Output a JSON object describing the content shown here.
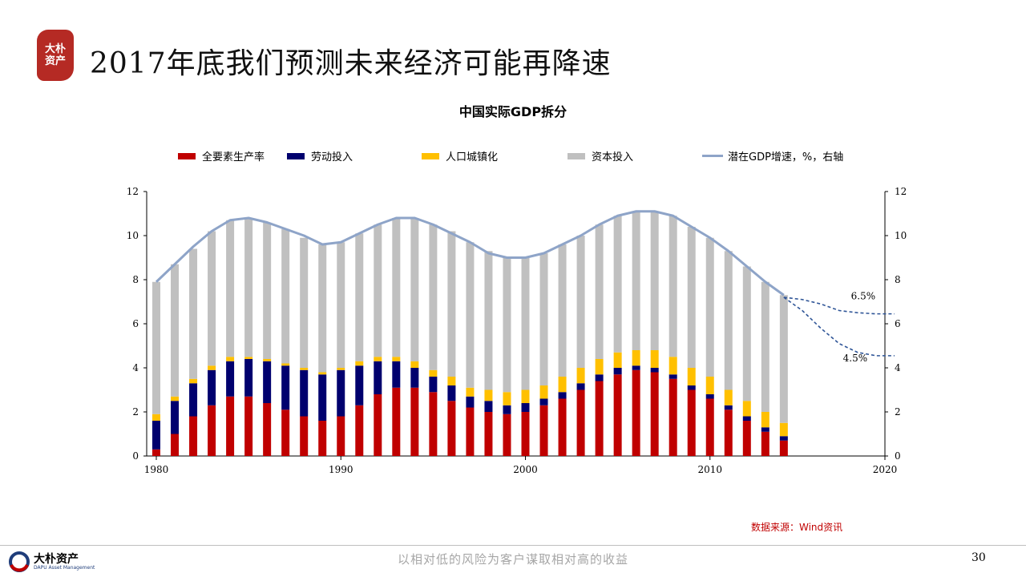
{
  "slide": {
    "title": "2017年底我们预测未来经济可能再降速",
    "logo_text": "大朴资产",
    "source": "数据来源：Wind资讯",
    "slogan": "以相对低的风险为客户谋取相对高的收益",
    "page_number": "30",
    "footer_company": "大朴资产",
    "footer_company_en": "DAPU Asset Management"
  },
  "colors": {
    "tfp": "#c00000",
    "labor": "#00006e",
    "urban": "#ffc000",
    "capital": "#c0c0c0",
    "potential": "#8ea4c8",
    "forecast": "#2f5597"
  },
  "chart_data": {
    "type": "bar",
    "title": "中国实际GDP拆分",
    "stacked": true,
    "xlim": [
      1980,
      2020
    ],
    "ylim": [
      0,
      12
    ],
    "y2lim": [
      0,
      12
    ],
    "x_ticks": [
      "1980",
      "1990",
      "2000",
      "2010",
      "2020"
    ],
    "y_ticks": [
      "0",
      "2",
      "4",
      "6",
      "8",
      "10",
      "12"
    ],
    "y2_ticks": [
      "0",
      "2",
      "4",
      "6",
      "8",
      "10",
      "12"
    ],
    "legend_position": "top",
    "grid": false,
    "years": [
      1980,
      1981,
      1982,
      1983,
      1984,
      1985,
      1986,
      1987,
      1988,
      1989,
      1990,
      1991,
      1992,
      1993,
      1994,
      1995,
      1996,
      1997,
      1998,
      1999,
      2000,
      2001,
      2002,
      2003,
      2004,
      2005,
      2006,
      2007,
      2008,
      2009,
      2010,
      2011,
      2012,
      2013,
      2014
    ],
    "series": [
      {
        "name": "全要素生产率",
        "values": [
          0.3,
          1.0,
          1.8,
          2.3,
          2.7,
          2.7,
          2.4,
          2.1,
          1.8,
          1.6,
          1.8,
          2.3,
          2.8,
          3.1,
          3.1,
          2.9,
          2.5,
          2.2,
          2.0,
          1.9,
          2.0,
          2.3,
          2.6,
          3.0,
          3.4,
          3.7,
          3.9,
          3.8,
          3.5,
          3.0,
          2.6,
          2.1,
          1.6,
          1.1,
          0.7
        ]
      },
      {
        "name": "劳动投入",
        "values": [
          1.3,
          1.5,
          1.5,
          1.6,
          1.6,
          1.7,
          1.9,
          2.0,
          2.1,
          2.1,
          2.1,
          1.8,
          1.5,
          1.2,
          0.9,
          0.7,
          0.7,
          0.5,
          0.5,
          0.4,
          0.4,
          0.3,
          0.3,
          0.3,
          0.3,
          0.3,
          0.2,
          0.2,
          0.2,
          0.2,
          0.2,
          0.2,
          0.2,
          0.2,
          0.2
        ]
      },
      {
        "name": "人口城镇化",
        "values": [
          0.3,
          0.2,
          0.2,
          0.2,
          0.2,
          0.1,
          0.1,
          0.1,
          0.1,
          0.1,
          0.1,
          0.2,
          0.2,
          0.2,
          0.3,
          0.3,
          0.4,
          0.4,
          0.5,
          0.6,
          0.6,
          0.6,
          0.7,
          0.7,
          0.7,
          0.7,
          0.7,
          0.8,
          0.8,
          0.8,
          0.8,
          0.7,
          0.7,
          0.7,
          0.6
        ]
      },
      {
        "name": "资本投入",
        "values": [
          6.0,
          6.0,
          5.9,
          6.1,
          6.2,
          6.3,
          6.2,
          6.1,
          5.9,
          5.8,
          5.7,
          5.8,
          6.0,
          6.3,
          6.5,
          6.6,
          6.6,
          6.6,
          6.3,
          6.1,
          6.0,
          6.0,
          6.0,
          6.0,
          6.1,
          6.2,
          6.3,
          6.3,
          6.4,
          6.4,
          6.3,
          6.3,
          6.1,
          5.9,
          5.8
        ]
      },
      {
        "name": "潜在GDP增速，%，右轴",
        "axis": "right",
        "type": "line",
        "x": [
          1980,
          1981,
          1982,
          1983,
          1984,
          1985,
          1986,
          1987,
          1988,
          1989,
          1990,
          1991,
          1992,
          1993,
          1994,
          1995,
          1996,
          1997,
          1998,
          1999,
          2000,
          2001,
          2002,
          2003,
          2004,
          2005,
          2006,
          2007,
          2008,
          2009,
          2010,
          2011,
          2012,
          2013,
          2014
        ],
        "values": [
          7.9,
          8.7,
          9.5,
          10.2,
          10.7,
          10.8,
          10.6,
          10.3,
          10.0,
          9.6,
          9.7,
          10.1,
          10.5,
          10.8,
          10.8,
          10.5,
          10.1,
          9.7,
          9.2,
          9.0,
          9.0,
          9.2,
          9.6,
          10.0,
          10.5,
          10.9,
          11.1,
          11.1,
          10.9,
          10.4,
          9.9,
          9.3,
          8.6,
          7.9,
          7.3
        ]
      }
    ],
    "forecasts": [
      {
        "label": "6.5%",
        "x": [
          2014,
          2015,
          2016,
          2017,
          2018,
          2019,
          2020
        ],
        "values": [
          7.2,
          7.1,
          6.9,
          6.6,
          6.5,
          6.45,
          6.45
        ]
      },
      {
        "label": "4.5%",
        "x": [
          2014,
          2015,
          2016,
          2017,
          2018,
          2019,
          2020
        ],
        "values": [
          7.2,
          6.6,
          5.8,
          5.1,
          4.7,
          4.55,
          4.55
        ]
      }
    ]
  }
}
